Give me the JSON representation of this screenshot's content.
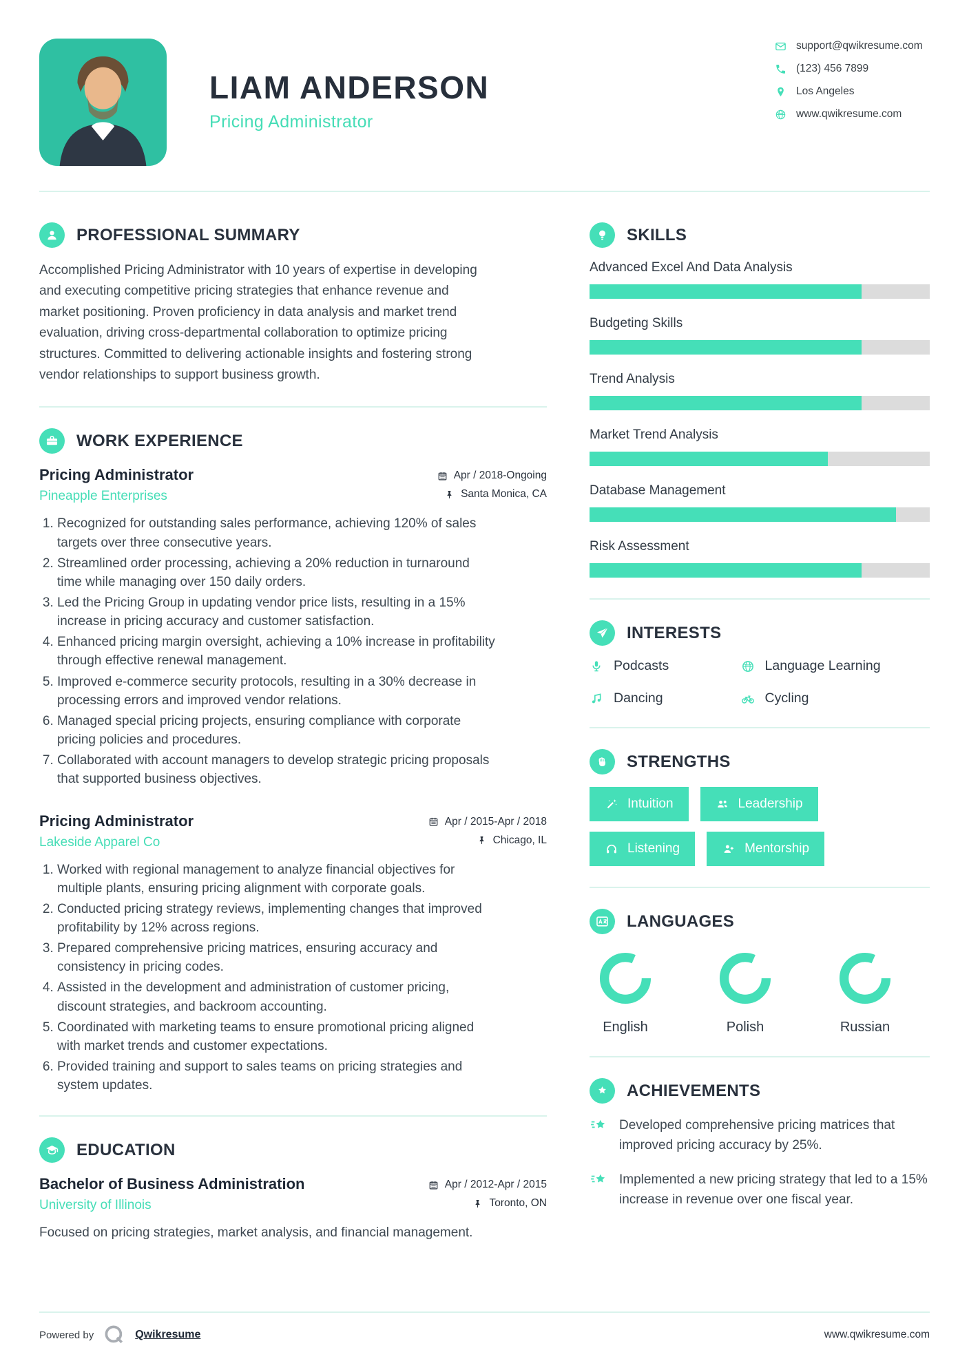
{
  "colors": {
    "accent": "#45dfb8",
    "company_text": "#45ddb6",
    "photo_background": "#2fc0a2",
    "heading_text": "#29313d",
    "bar_track": "#dcdcdc",
    "divider": "#d9f3ec"
  },
  "header": {
    "name": "LIAM ANDERSON",
    "title": "Pricing Administrator",
    "contact": [
      {
        "icon": "email-icon",
        "text": "support@qwikresume.com"
      },
      {
        "icon": "phone-icon",
        "text": "(123) 456 7899"
      },
      {
        "icon": "location-icon",
        "text": "Los Angeles"
      },
      {
        "icon": "globe-icon",
        "text": "www.qwikresume.com"
      }
    ]
  },
  "summary": {
    "heading": "PROFESSIONAL SUMMARY",
    "icon": "user-icon",
    "text": "Accomplished Pricing Administrator with 10 years of expertise in developing and executing competitive pricing strategies that enhance revenue and market positioning. Proven proficiency in data analysis and market trend evaluation, driving cross-departmental collaboration to optimize pricing structures. Committed to delivering actionable insights and fostering strong vendor relationships to support business growth."
  },
  "work": {
    "heading": "WORK EXPERIENCE",
    "icon": "briefcase-icon",
    "jobs": [
      {
        "title": "Pricing Administrator",
        "company": "Pineapple Enterprises",
        "dates": "Apr / 2018-Ongoing",
        "location": "Santa Monica, CA",
        "bullets": [
          "Recognized for outstanding sales performance, achieving 120% of sales targets over three consecutive years.",
          "Streamlined order processing, achieving a 20% reduction in turnaround time while managing over 150 daily orders.",
          "Led the Pricing Group in updating vendor price lists, resulting in a 15% increase in pricing accuracy and customer satisfaction.",
          "Enhanced pricing margin oversight, achieving a 10% increase in profitability through effective renewal management.",
          "Improved e-commerce security protocols, resulting in a 30% decrease in processing errors and improved vendor relations.",
          "Managed special pricing projects, ensuring compliance with corporate pricing policies and procedures.",
          "Collaborated with account managers to develop strategic pricing proposals that supported business objectives."
        ]
      },
      {
        "title": "Pricing Administrator",
        "company": "Lakeside Apparel Co",
        "dates": "Apr / 2015-Apr / 2018",
        "location": "Chicago, IL",
        "bullets": [
          "Worked with regional management to analyze financial objectives for multiple plants, ensuring pricing alignment with corporate goals.",
          "Conducted pricing strategy reviews, implementing changes that improved profitability by 12% across regions.",
          "Prepared comprehensive pricing matrices, ensuring accuracy and consistency in pricing codes.",
          "Assisted in the development and administration of customer pricing, discount strategies, and backroom accounting.",
          "Coordinated with marketing teams to ensure promotional pricing aligned with market trends and customer expectations.",
          "Provided training and support to sales teams on pricing strategies and system updates."
        ]
      }
    ]
  },
  "education": {
    "heading": "EDUCATION",
    "icon": "graduation-cap-icon",
    "degree": "Bachelor of Business Administration",
    "school": "University of Illinois",
    "dates": "Apr / 2012-Apr / 2015",
    "location": "Toronto, ON",
    "description": "Focused on pricing strategies, market analysis, and financial management."
  },
  "skills": {
    "heading": "SKILLS",
    "icon": "lightbulb-icon",
    "items": [
      {
        "name": "Advanced Excel And Data Analysis",
        "level": 80
      },
      {
        "name": "Budgeting Skills",
        "level": 80
      },
      {
        "name": "Trend Analysis",
        "level": 80
      },
      {
        "name": "Market Trend Analysis",
        "level": 70
      },
      {
        "name": "Database Management",
        "level": 90
      },
      {
        "name": "Risk Assessment",
        "level": 80
      }
    ]
  },
  "interests": {
    "heading": "INTERESTS",
    "icon": "paper-plane-icon",
    "items": [
      {
        "icon": "microphone-icon",
        "label": "Podcasts"
      },
      {
        "icon": "globe-icon",
        "label": "Language Learning"
      },
      {
        "icon": "music-note-icon",
        "label": "Dancing"
      },
      {
        "icon": "bicycle-icon",
        "label": "Cycling"
      }
    ]
  },
  "strengths": {
    "heading": "STRENGTHS",
    "icon": "fist-icon",
    "items": [
      {
        "icon": "wand-icon",
        "label": "Intuition"
      },
      {
        "icon": "users-icon",
        "label": "Leadership"
      },
      {
        "icon": "headphones-icon",
        "label": "Listening"
      },
      {
        "icon": "user-plus-icon",
        "label": "Mentorship"
      }
    ]
  },
  "languages": {
    "heading": "LANGUAGES",
    "icon": "translate-icon",
    "items": [
      {
        "name": "English",
        "level": 82
      },
      {
        "name": "Polish",
        "level": 82
      },
      {
        "name": "Russian",
        "level": 82
      }
    ]
  },
  "achievements": {
    "heading": "ACHIEVEMENTS",
    "icon": "medal-star-icon",
    "items": [
      "Developed comprehensive pricing matrices that improved pricing accuracy by 25%.",
      "Implemented a new pricing strategy that led to a 15% increase in revenue over one fiscal year."
    ]
  },
  "footer": {
    "powered_by": "Powered by",
    "brand": "Qwikresume",
    "website": "www.qwikresume.com"
  }
}
